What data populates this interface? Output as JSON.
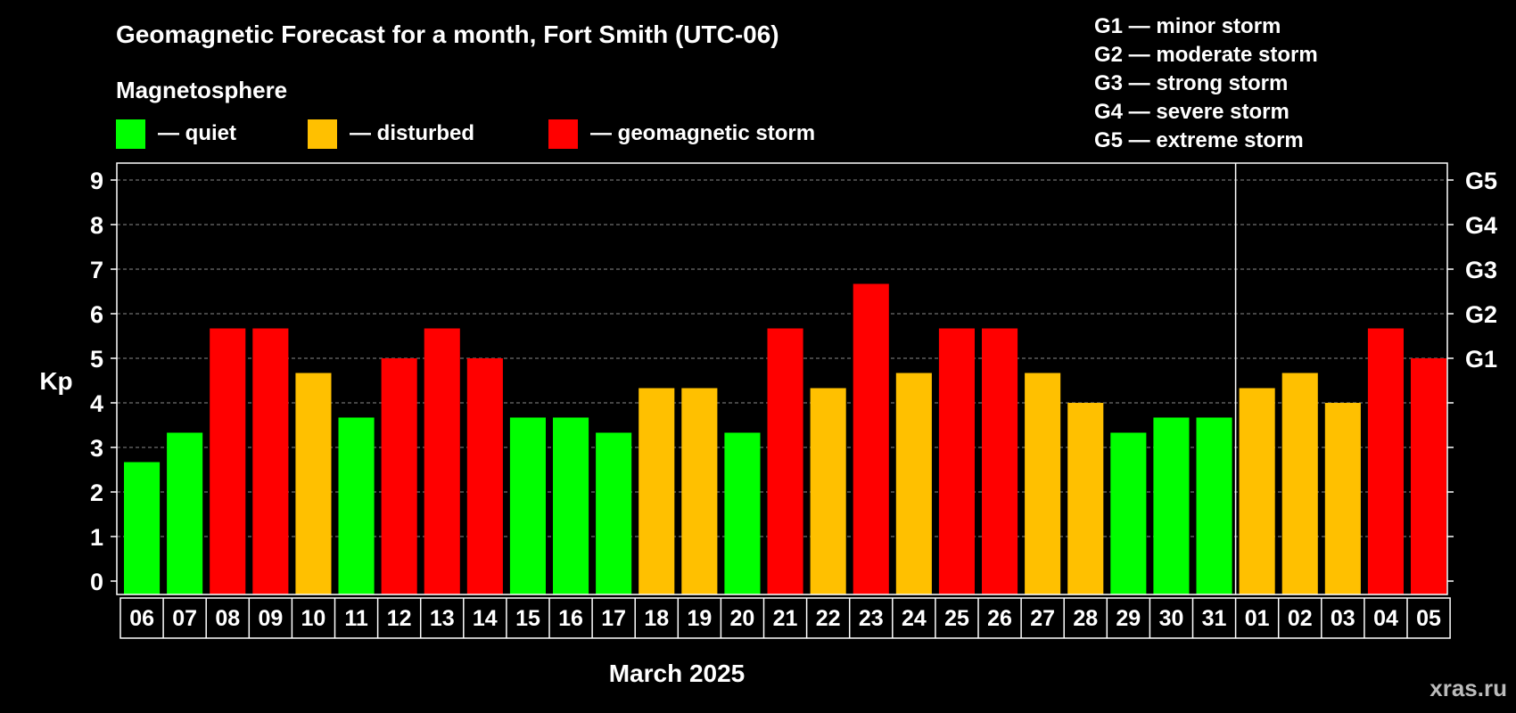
{
  "chart_data": {
    "type": "bar",
    "title": "Geomagnetic Forecast for a month, Fort Smith (UTC-06)",
    "legend": {
      "title": "Magnetosphere",
      "items": [
        {
          "label": "— quiet",
          "color": "#00ff00"
        },
        {
          "label": "— disturbed",
          "color": "#ffc000"
        },
        {
          "label": "— geomagnetic storm",
          "color": "#ff0000"
        }
      ]
    },
    "storm_levels": [
      "G1 — minor storm",
      "G2 — moderate storm",
      "G3 — strong storm",
      "G4 — severe storm",
      "G5 — extreme storm"
    ],
    "ylabel": "Kp",
    "xlabel": "March 2025",
    "ylim": [
      0,
      9
    ],
    "y_ticks": [
      0,
      1,
      2,
      3,
      4,
      5,
      6,
      7,
      8,
      9
    ],
    "right_axis": [
      {
        "value": 5,
        "label": "G1"
      },
      {
        "value": 6,
        "label": "G2"
      },
      {
        "value": 7,
        "label": "G3"
      },
      {
        "value": 8,
        "label": "G4"
      },
      {
        "value": 9,
        "label": "G5"
      }
    ],
    "grid": true,
    "month_divider_after": "31",
    "categories": [
      "06",
      "07",
      "08",
      "09",
      "10",
      "11",
      "12",
      "13",
      "14",
      "15",
      "16",
      "17",
      "18",
      "19",
      "20",
      "21",
      "22",
      "23",
      "24",
      "25",
      "26",
      "27",
      "28",
      "29",
      "30",
      "31",
      "01",
      "02",
      "03",
      "04",
      "05"
    ],
    "values": [
      2.67,
      3.33,
      5.67,
      5.67,
      4.67,
      3.67,
      5.0,
      5.67,
      5.0,
      3.67,
      3.67,
      3.33,
      4.33,
      4.33,
      3.33,
      5.67,
      4.33,
      6.67,
      4.67,
      5.67,
      5.67,
      4.67,
      4.0,
      3.33,
      3.67,
      3.67,
      4.33,
      4.67,
      4.0,
      5.67,
      5.0
    ],
    "levels": [
      "quiet",
      "quiet",
      "storm",
      "storm",
      "disturbed",
      "quiet",
      "storm",
      "storm",
      "storm",
      "quiet",
      "quiet",
      "quiet",
      "disturbed",
      "disturbed",
      "quiet",
      "storm",
      "disturbed",
      "storm",
      "disturbed",
      "storm",
      "storm",
      "disturbed",
      "disturbed",
      "quiet",
      "quiet",
      "quiet",
      "disturbed",
      "disturbed",
      "disturbed",
      "storm",
      "storm"
    ],
    "level_colors": {
      "quiet": "#00ff00",
      "disturbed": "#ffc000",
      "storm": "#ff0000"
    }
  },
  "watermark": "xras.ru"
}
